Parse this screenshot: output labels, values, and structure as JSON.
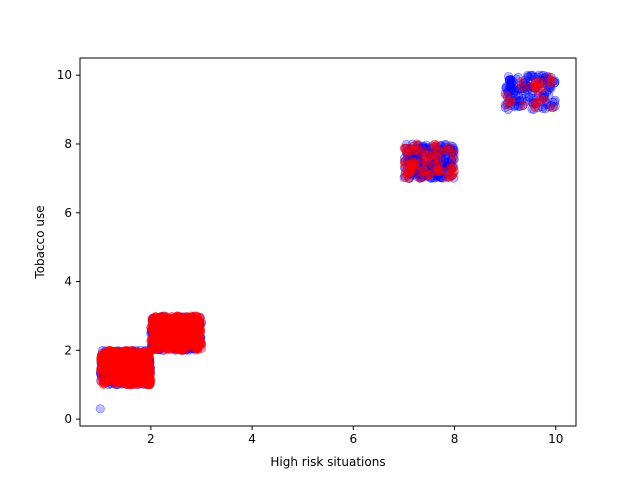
{
  "chart_data": {
    "type": "scatter",
    "title": "",
    "xlabel": "High risk situations",
    "ylabel": "Tobacco use",
    "xlim": [
      0.6,
      10.4
    ],
    "ylim": [
      -0.2,
      10.5
    ],
    "xticks": [
      2,
      4,
      6,
      8,
      10
    ],
    "yticks": [
      0,
      2,
      4,
      6,
      8,
      10
    ],
    "grid": false,
    "legend": "none",
    "colors": {
      "blue_points": "#0000ff",
      "red_points": "#ff0000"
    },
    "series": [
      {
        "color": "#0000ff",
        "alpha": 0.25,
        "clusters": [
          {
            "x": [
              1.0,
              2.0
            ],
            "y": [
              1.0,
              2.0
            ],
            "count": 350
          },
          {
            "x": [
              2.0,
              3.0
            ],
            "y": [
              2.0,
              3.0
            ],
            "count": 350
          },
          {
            "x": [
              7.0,
              8.0
            ],
            "y": [
              7.0,
              8.0
            ],
            "count": 250
          },
          {
            "x": [
              9.0,
              10.0
            ],
            "y": [
              9.0,
              10.0
            ],
            "count": 150
          }
        ],
        "points": [
          [
            1.0,
            0.3
          ]
        ]
      },
      {
        "color": "#ff0000",
        "alpha": 0.35,
        "clusters": [
          {
            "x": [
              1.0,
              2.0
            ],
            "y": [
              1.0,
              2.0
            ],
            "count": 400
          },
          {
            "x": [
              2.0,
              3.0
            ],
            "y": [
              2.0,
              3.0
            ],
            "count": 400
          },
          {
            "x": [
              7.0,
              8.0
            ],
            "y": [
              7.0,
              8.0
            ],
            "count": 70
          },
          {
            "x": [
              9.0,
              10.0
            ],
            "y": [
              9.0,
              10.0
            ],
            "count": 25
          }
        ],
        "points": []
      }
    ]
  }
}
